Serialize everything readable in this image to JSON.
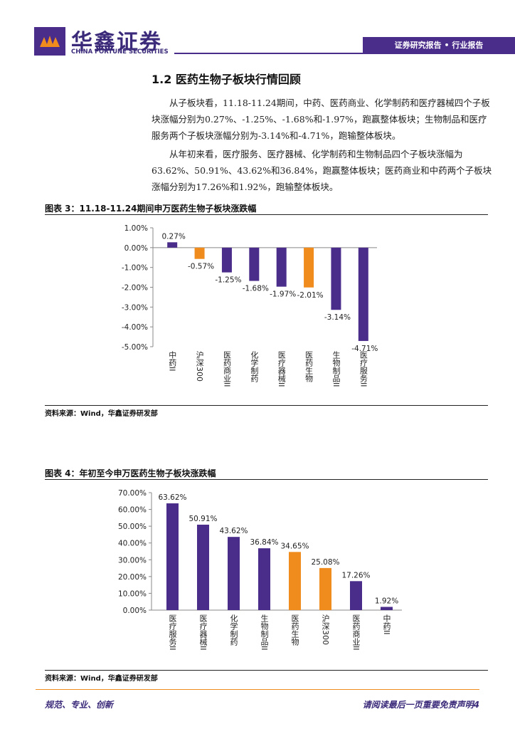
{
  "header": {
    "brand": "华鑫证券",
    "brand_en": "CHINA FORTUNE SECURITIES",
    "tag": "证券研究报告 • 行业报告"
  },
  "section_title": "1.2 医药生物子板块行情回顾",
  "paragraphs": [
    "从子板块看，11.18-11.24期间，中药、医药商业、化学制药和医疗器械四个子板块涨幅分别为0.27%、-1.25%、-1.68%和-1.97%，跑赢整体板块；生物制品和医疗服务两个子板块涨幅分别为-3.14%和-4.71%，跑输整体板块。",
    "从年初来看，医疗服务、医疗器械、化学制药和生物制品四个子板块涨幅为63.62%、50.91%、43.62%和36.84%，跑赢整体板块；医药商业和中药两个子板块涨幅分别为17.26%和1.92%，跑输整体板块。"
  ],
  "chart_data": [
    {
      "type": "bar",
      "title": "图表 3：11.18-11.24期间申万医药生物子板块涨跌幅",
      "source": "资料来源：Wind，华鑫证券研发部",
      "categories": [
        "中药II",
        "沪深300",
        "医药商业II",
        "化学制药",
        "医疗器械II",
        "医药生物",
        "生物制品II",
        "医疗服务II"
      ],
      "values": [
        0.27,
        -0.57,
        -1.25,
        -1.68,
        -1.97,
        -2.01,
        -3.14,
        -4.71
      ],
      "value_labels": [
        "0.27%",
        "-0.57%",
        "-1.25%",
        "-1.68%",
        "-1.97%",
        "-2.01%",
        "-3.14%",
        "-4.71%"
      ],
      "colors": [
        "#4a2c8a",
        "#f08c1e",
        "#4a2c8a",
        "#4a2c8a",
        "#4a2c8a",
        "#f08c1e",
        "#4a2c8a",
        "#4a2c8a"
      ],
      "ylim": [
        -5,
        1
      ],
      "yticks": [
        {
          "value": 1,
          "label": "1.00%"
        },
        {
          "value": 0,
          "label": "0.00%"
        },
        {
          "value": -1,
          "label": "-1.00%"
        },
        {
          "value": -2,
          "label": "-2.00%"
        },
        {
          "value": -3,
          "label": "-3.00%"
        },
        {
          "value": -4,
          "label": "-4.00%"
        },
        {
          "value": -5,
          "label": "-5.00%"
        }
      ]
    },
    {
      "type": "bar",
      "title": "图表 4：年初至今申万医药生物子板块涨跌幅",
      "source": "资料来源：Wind，华鑫证券研发部",
      "categories": [
        "医疗服务II",
        "医疗器械II",
        "化学制药",
        "生物制品II",
        "医药生物",
        "沪深300",
        "医药商业II",
        "中药II"
      ],
      "values": [
        63.62,
        50.91,
        43.62,
        36.84,
        34.65,
        25.08,
        17.26,
        1.92
      ],
      "value_labels": [
        "63.62%",
        "50.91%",
        "43.62%",
        "36.84%",
        "34.65%",
        "25.08%",
        "17.26%",
        "1.92%"
      ],
      "colors": [
        "#4a2c8a",
        "#4a2c8a",
        "#4a2c8a",
        "#4a2c8a",
        "#f08c1e",
        "#f08c1e",
        "#4a2c8a",
        "#4a2c8a"
      ],
      "ylim": [
        0,
        70
      ],
      "yticks": [
        {
          "value": 0,
          "label": "0.00%"
        },
        {
          "value": 10,
          "label": "10.00%"
        },
        {
          "value": 20,
          "label": "20.00%"
        },
        {
          "value": 30,
          "label": "30.00%"
        },
        {
          "value": 40,
          "label": "40.00%"
        },
        {
          "value": 50,
          "label": "50.00%"
        },
        {
          "value": 60,
          "label": "60.00%"
        },
        {
          "value": 70,
          "label": "70.00%"
        }
      ]
    }
  ],
  "footer": {
    "left": "规范、专业、创新",
    "right": "请阅读最后一页重要免责声明4"
  }
}
